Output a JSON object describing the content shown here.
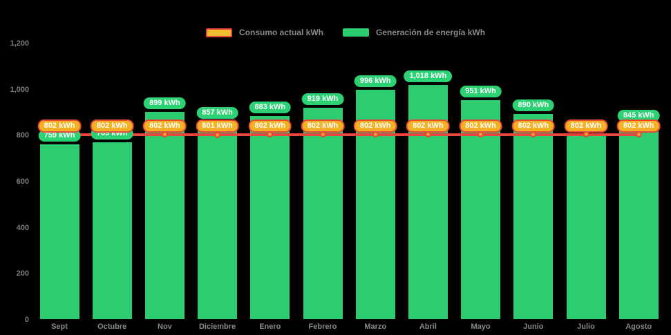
{
  "legend": {
    "consumption_label": "Consumo actual kWh",
    "generation_label": "Generación de energía kWh"
  },
  "colors": {
    "background": "#000000",
    "bar_green": "#2ecc71",
    "pill_green": "#2bd172",
    "line_red": "#e8453c",
    "marker_gold": "#f0a52a",
    "pill_gold": "#f4b223",
    "legend_swatch_gold": "#f2c02e",
    "axis_text": "#7f7f7f",
    "label_text": "#ffffff"
  },
  "chart_data": {
    "type": "bar",
    "subtype": "bar-with-line-overlay",
    "categories": [
      "Sept",
      "Octubre",
      "Nov",
      "Diciembre",
      "Enero",
      "Febrero",
      "Marzo",
      "Abril",
      "Mayo",
      "Junio",
      "Julio",
      "Agosto"
    ],
    "series": [
      {
        "name": "Consumo actual kWh",
        "type": "line",
        "values": [
          802,
          802,
          802,
          801,
          802,
          802,
          802,
          802,
          802,
          802,
          802,
          802
        ]
      },
      {
        "name": "Generación de energía kWh",
        "type": "bar",
        "values": [
          759,
          769,
          899,
          857,
          883,
          919,
          996,
          1018,
          951,
          890,
          802,
          845
        ]
      }
    ],
    "generation_label_hidden_indices": [
      10
    ],
    "value_suffix": " kWh",
    "title": "",
    "xlabel": "",
    "ylabel": "",
    "ylim": [
      0,
      1200
    ],
    "yticks": [
      0,
      200,
      400,
      600,
      800,
      1000,
      1200
    ],
    "ytick_labels": [
      "0",
      "200",
      "400",
      "600",
      "800",
      "1,000",
      "1,200"
    ],
    "grid": false,
    "legend_position": "top-center"
  }
}
